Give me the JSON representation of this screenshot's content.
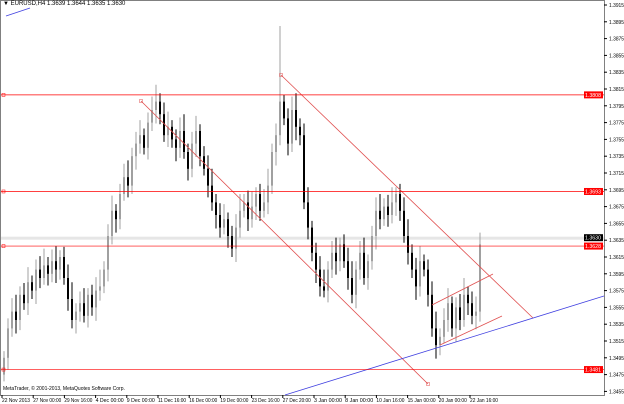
{
  "header": {
    "symbol": "EURUSD,H4",
    "ohlc": "1.3639 1.3644 1.3635 1.3630",
    "menu_icon": "triangle-down-icon"
  },
  "copyright": "MetaTrader, © 2001-2013, MetaQuotes Software Corp.",
  "chart_data": {
    "type": "candlestick",
    "symbol": "EURUSD",
    "timeframe": "H4",
    "ylim": [
      1.3455,
      1.3915
    ],
    "y_ticks": [
      "1.3915",
      "1.3895",
      "1.3875",
      "1.3855",
      "1.3835",
      "1.3815",
      "1.3795",
      "1.3775",
      "1.3755",
      "1.3735",
      "1.3715",
      "1.3695",
      "1.3675",
      "1.3655",
      "1.3635",
      "1.3615",
      "1.3595",
      "1.3575",
      "1.3555",
      "1.3535",
      "1.3515",
      "1.3495",
      "1.3475",
      "1.3455"
    ],
    "x_ticks": [
      "22 Nov 2013",
      "27 Nov 00:00",
      "29 Nov 16:00",
      "4 Dec 00:00",
      "9 Dec 00:00",
      "11 Dec 16:00",
      "16 Dec 00:00",
      "19 Dec 00:00",
      "23 Dec 16:00",
      "27 Dec 20:00",
      "3 Jan 00:00",
      "8 Jan 00:00",
      "10 Jan 16:00",
      "15 Jan 00:00",
      "20 Jan 00:00",
      "22 Jan 16:00"
    ],
    "closes": [
      1.3495,
      1.353,
      1.355,
      1.354,
      1.357,
      1.356,
      1.3585,
      1.3575,
      1.36,
      1.359,
      1.3605,
      1.3595,
      1.361,
      1.36,
      1.3615,
      1.359,
      1.3565,
      1.354,
      1.355,
      1.356,
      1.3545,
      1.357,
      1.3555,
      1.3575,
      1.358,
      1.36,
      1.364,
      1.367,
      1.366,
      1.369,
      1.371,
      1.37,
      1.3735,
      1.375,
      1.376,
      1.3745,
      1.3775,
      1.379,
      1.38,
      1.3785,
      1.376,
      1.377,
      1.3755,
      1.3745,
      1.3765,
      1.374,
      1.372,
      1.375,
      1.3765,
      1.3735,
      1.372,
      1.37,
      1.368,
      1.3665,
      1.365,
      1.366,
      1.364,
      1.3625,
      1.365,
      1.367,
      1.368,
      1.366,
      1.3675,
      1.369,
      1.367,
      1.368,
      1.37,
      1.374,
      1.376,
      1.38,
      1.378,
      1.375,
      1.379,
      1.377,
      1.376,
      1.368,
      1.365,
      1.362,
      1.36,
      1.358,
      1.3575,
      1.36,
      1.362,
      1.361,
      1.363,
      1.361,
      1.359,
      1.357,
      1.36,
      1.362,
      1.359,
      1.361,
      1.364,
      1.367,
      1.366,
      1.3675,
      1.3665,
      1.368,
      1.369,
      1.367,
      1.364,
      1.362,
      1.36,
      1.358,
      1.361,
      1.36,
      1.357,
      1.353,
      1.351,
      1.352,
      1.354,
      1.356,
      1.353,
      1.3555,
      1.354,
      1.357,
      1.356,
      1.3545,
      1.355,
      1.363
    ],
    "current_price": "1.3630",
    "levels": [
      {
        "label": "1.3808",
        "value": 1.3808
      },
      {
        "label": "1.3693",
        "value": 1.3693
      },
      {
        "label": "1.3628",
        "value": 1.3628
      },
      {
        "label": "1.3481",
        "value": 1.3481
      }
    ],
    "colors": {
      "level": "#ff0000",
      "trend_red": "#e05050",
      "trend_blue": "#4040e0",
      "bull": "#a0a0a0",
      "bear": "#000000",
      "current": "#000000"
    }
  }
}
